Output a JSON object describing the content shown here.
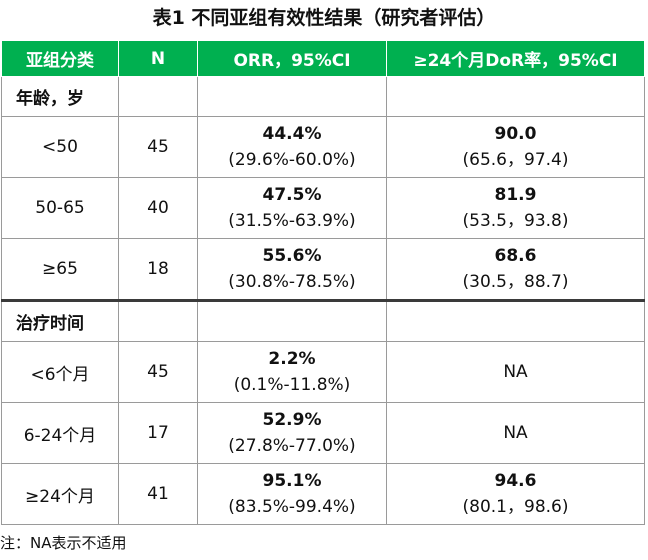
{
  "title": "表1 不同亚组有效性结果（研究者评估）",
  "headers": [
    "亚组分类",
    "N",
    "ORR，95%CI",
    "≥24个月DoR率，95%CI"
  ],
  "sections": [
    {
      "label": "年龄，岁",
      "rows": [
        {
          "group": "<50",
          "n": "45",
          "orr": "44.4%",
          "orr_ci": "(29.6%-60.0%)",
          "dor": "90.0",
          "dor_ci": "(65.6，97.4)"
        },
        {
          "group": "50-65",
          "n": "40",
          "orr": "47.5%",
          "orr_ci": "(31.5%-63.9%)",
          "dor": "81.9",
          "dor_ci": "(53.5，93.8)"
        },
        {
          "group": "≥65",
          "n": "18",
          "orr": "55.6%",
          "orr_ci": "(30.8%-78.5%)",
          "dor": "68.6",
          "dor_ci": "(30.5，88.7)"
        }
      ]
    },
    {
      "label": "治疗时间",
      "rows": [
        {
          "group": "<6个月",
          "n": "45",
          "orr": "2.2%",
          "orr_ci": "(0.1%-11.8%)",
          "dor": "",
          "dor_ci": "",
          "dor_na": "NA"
        },
        {
          "group": "6-24个月",
          "n": "17",
          "orr": "52.9%",
          "orr_ci": "(27.8%-77.0%)",
          "dor": "",
          "dor_ci": "",
          "dor_na": "NA"
        },
        {
          "group": "≥24个月",
          "n": "41",
          "orr": "95.1%",
          "orr_ci": "(83.5%-99.4%)",
          "dor": "94.6",
          "dor_ci": "(80.1，98.6)"
        }
      ]
    }
  ],
  "note": "注：NA表示不适用",
  "colors": {
    "header_bg": "#00b050",
    "header_text": "#ffffff",
    "grid": "#9a9a9a"
  }
}
